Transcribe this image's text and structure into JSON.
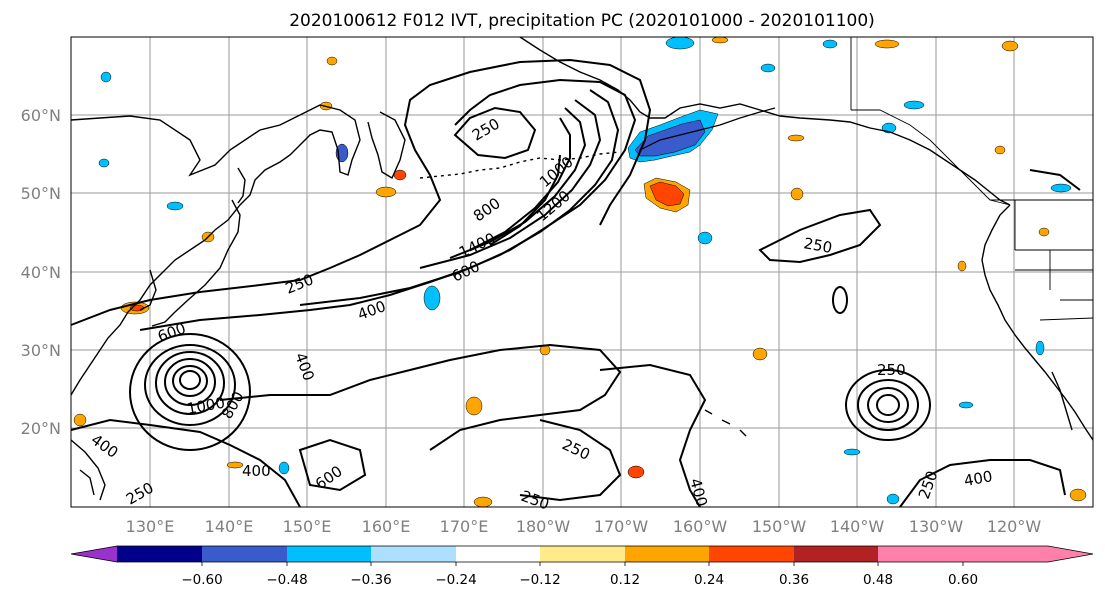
{
  "title": "2020100612 F012 IVT, precipitation PC (2020101000 - 2020101100)",
  "lon_labels": [
    "130°E",
    "140°E",
    "150°E",
    "160°E",
    "170°E",
    "180°W",
    "170°W",
    "160°W",
    "150°W",
    "140°W",
    "130°W",
    "120°W"
  ],
  "lat_labels": [
    "60°N",
    "50°N",
    "40°N",
    "30°N",
    "20°N"
  ],
  "colorbar": {
    "tick_labels": [
      "−0.60",
      "−0.48",
      "−0.36",
      "−0.24",
      "−0.12",
      "0.12",
      "0.24",
      "0.36",
      "0.48",
      "0.60"
    ],
    "colors": [
      "#9932CC",
      "#00008B",
      "#3A5BCC",
      "#00BFFF",
      "#ADDFFF",
      "#FFFFFF",
      "#FFEB8A",
      "#FFA500",
      "#FF4500",
      "#B22222",
      "#FF80AA"
    ]
  },
  "contour_labels": [
    {
      "text": "250"
    },
    {
      "text": "250"
    },
    {
      "text": "250"
    },
    {
      "text": "250"
    },
    {
      "text": "250"
    },
    {
      "text": "250"
    },
    {
      "text": "250"
    },
    {
      "text": "250"
    },
    {
      "text": "400"
    },
    {
      "text": "400"
    },
    {
      "text": "400"
    },
    {
      "text": "400"
    },
    {
      "text": "400"
    },
    {
      "text": "600"
    },
    {
      "text": "600"
    },
    {
      "text": "600"
    },
    {
      "text": "800"
    },
    {
      "text": "800"
    },
    {
      "text": "1000"
    },
    {
      "text": "1000"
    },
    {
      "text": "1200"
    },
    {
      "text": "1400"
    },
    {
      "text": "400"
    }
  ]
}
